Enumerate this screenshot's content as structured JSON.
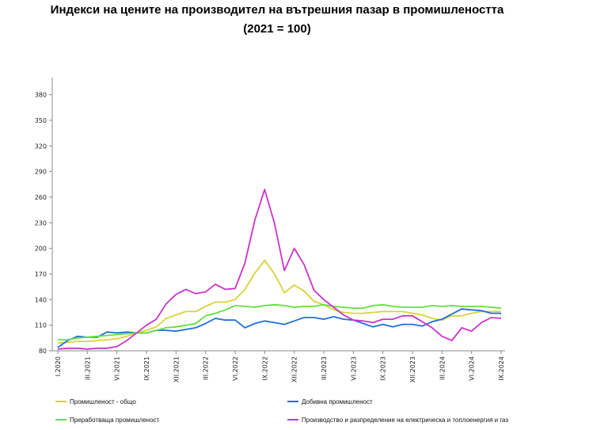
{
  "chart_data": {
    "type": "line",
    "title": "Индекси на цените на производител на вътрешния пазар в промишлеността",
    "subtitle": "(2021 = 100)",
    "xlabel": "",
    "ylabel": "",
    "ylim": [
      80,
      400
    ],
    "yticks": [
      80,
      110,
      140,
      170,
      200,
      230,
      260,
      290,
      320,
      350,
      380
    ],
    "x_tick_labels": [
      "I.2020",
      "III.2021",
      "VI.2021",
      "IX.2021",
      "XII.2021",
      "III.2022",
      "VI.2022",
      "IX.2022",
      "XII.2022",
      "III.2023",
      "VI.2023",
      "IX.2023",
      "XII.2023",
      "III.2024",
      "VI.2024",
      "IX.2024"
    ],
    "x_tick_index": [
      0,
      3,
      6,
      9,
      12,
      15,
      18,
      21,
      24,
      27,
      30,
      33,
      36,
      39,
      42,
      45
    ],
    "grid": false,
    "legend": "bottom",
    "series": [
      {
        "name": "Промишленост - общо",
        "color": "#d9d23a",
        "values": [
          89,
          90,
          91,
          91,
          92,
          93,
          94,
          97,
          101,
          104,
          108,
          118,
          122,
          126,
          126,
          132,
          137,
          137,
          140,
          152,
          171,
          186,
          170,
          148,
          157,
          150,
          138,
          134,
          128,
          125,
          124,
          124,
          125,
          126,
          126,
          126,
          124,
          122,
          118,
          116,
          121,
          121,
          124,
          126,
          126,
          126
        ]
      },
      {
        "name": "Добивна промишленост",
        "color": "#1f6fd9",
        "values": [
          84,
          92,
          97,
          96,
          96,
          102,
          101,
          102,
          101,
          101,
          104,
          104,
          103,
          105,
          107,
          112,
          118,
          116,
          116,
          107,
          112,
          115,
          113,
          111,
          115,
          119,
          119,
          117,
          120,
          117,
          116,
          112,
          108,
          111,
          108,
          111,
          111,
          109,
          114,
          117,
          123,
          129,
          128,
          127,
          124,
          124
        ]
      },
      {
        "name": "Преработваща промишленост",
        "color": "#63e03a",
        "values": [
          93,
          93,
          95,
          96,
          97,
          98,
          99,
          100,
          101,
          101,
          104,
          107,
          108,
          110,
          112,
          121,
          124,
          128,
          133,
          132,
          131,
          133,
          134,
          133,
          131,
          132,
          132,
          134,
          132,
          131,
          130,
          130,
          133,
          134,
          132,
          131,
          131,
          131,
          133,
          132,
          133,
          132,
          132,
          132,
          131,
          130
        ]
      },
      {
        "name": "Производство и разпределение на електрическа и топлоенергия и газ",
        "color": "#cc33cc",
        "values": [
          82,
          83,
          83,
          82,
          83,
          83,
          85,
          92,
          101,
          110,
          117,
          135,
          146,
          152,
          147,
          149,
          158,
          152,
          153,
          183,
          233,
          269,
          229,
          174,
          200,
          181,
          151,
          140,
          131,
          122,
          116,
          115,
          113,
          117,
          117,
          121,
          121,
          114,
          107,
          97,
          92,
          107,
          103,
          113,
          119,
          118
        ]
      }
    ]
  }
}
